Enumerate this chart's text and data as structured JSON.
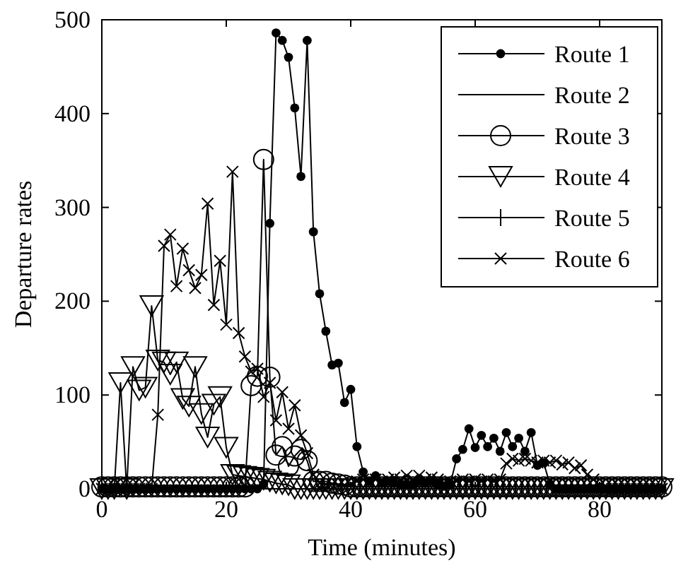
{
  "chart_data": {
    "type": "line",
    "xlabel": "Time (minutes)",
    "ylabel": "Departure rates",
    "xlim": [
      0,
      90
    ],
    "xticks": [
      0,
      20,
      40,
      60,
      80
    ],
    "ylim": [
      0,
      500
    ],
    "yticks": [
      0,
      100,
      200,
      300,
      400,
      500
    ],
    "legend": "top right",
    "grid": false,
    "line_style": "solid",
    "x": [
      0,
      1,
      2,
      3,
      4,
      5,
      6,
      7,
      8,
      9,
      10,
      11,
      12,
      13,
      14,
      15,
      16,
      17,
      18,
      19,
      20,
      21,
      22,
      23,
      24,
      25,
      26,
      27,
      28,
      29,
      30,
      31,
      32,
      33,
      34,
      35,
      36,
      37,
      38,
      39,
      40,
      41,
      42,
      43,
      44,
      45,
      46,
      47,
      48,
      49,
      50,
      51,
      52,
      53,
      54,
      55,
      56,
      57,
      58,
      59,
      60,
      61,
      62,
      63,
      64,
      65,
      66,
      67,
      68,
      69,
      70,
      71,
      72,
      73,
      74,
      75,
      76,
      77,
      78,
      79,
      80,
      81,
      82,
      83,
      84,
      85,
      86,
      87,
      88,
      89,
      90
    ],
    "series": [
      {
        "name": "Route 1",
        "color": "#000000",
        "marker": "circle",
        "values": [
          0,
          0,
          0,
          0,
          0,
          0,
          0,
          0,
          0,
          0,
          0,
          0,
          0,
          0,
          0,
          0,
          0,
          0,
          0,
          0,
          0,
          0,
          0,
          0,
          0,
          0,
          5,
          283,
          486,
          478,
          460,
          406,
          333,
          478,
          274,
          208,
          168,
          132,
          134,
          92,
          106,
          45,
          18,
          8,
          14,
          6,
          8,
          6,
          5,
          5,
          5,
          8,
          6,
          8,
          5,
          3,
          5,
          32,
          42,
          64,
          44,
          57,
          45,
          54,
          40,
          60,
          45,
          54,
          40,
          60,
          25,
          28,
          5,
          0,
          0,
          0,
          0,
          0,
          0,
          0,
          0,
          0,
          0,
          0,
          0,
          0,
          0,
          0,
          0,
          0,
          0
        ]
      },
      {
        "name": "Route 2",
        "color": "#000000",
        "marker": "none",
        "values": [
          null,
          null,
          null,
          null,
          null,
          null,
          null,
          null,
          null,
          null,
          null,
          null,
          null,
          null,
          null,
          null,
          null,
          null,
          null,
          null,
          null,
          null,
          null,
          null,
          null,
          null,
          null,
          null,
          null,
          null,
          null,
          null,
          null,
          null,
          null,
          null,
          null,
          null,
          null,
          null,
          null,
          null,
          null,
          null,
          null,
          null,
          null,
          null,
          null,
          null,
          null,
          null,
          null,
          null,
          null,
          null,
          null,
          null,
          null,
          null,
          null,
          null,
          null,
          null,
          null,
          null,
          null,
          null,
          null,
          null,
          null,
          null,
          null,
          null,
          null,
          null,
          null,
          null,
          null,
          null,
          null,
          null,
          null,
          null,
          null,
          null,
          null,
          null,
          null,
          null,
          null
        ]
      },
      {
        "name": "Route 3",
        "color": "#000000",
        "marker": "circle-open",
        "values": [
          2,
          2,
          2,
          2,
          2,
          2,
          2,
          2,
          2,
          2,
          2,
          2,
          2,
          2,
          2,
          2,
          2,
          2,
          2,
          2,
          2,
          2,
          2,
          2,
          110,
          120,
          351,
          119,
          36,
          45,
          24,
          35,
          42,
          30,
          8,
          8,
          8,
          6,
          5,
          4,
          2,
          2,
          2,
          2,
          2,
          2,
          2,
          2,
          2,
          2,
          2,
          2,
          2,
          2,
          2,
          2,
          2,
          2,
          2,
          2,
          2,
          2,
          2,
          2,
          2,
          2,
          2,
          2,
          2,
          2,
          2,
          2,
          2,
          2,
          2,
          2,
          2,
          2,
          2,
          2,
          2,
          2,
          2,
          2,
          2,
          2,
          2,
          2,
          2,
          2,
          2
        ]
      },
      {
        "name": "Route 4",
        "color": "#000000",
        "marker": "triangle",
        "values": [
          0,
          0,
          0,
          113,
          0,
          130,
          105,
          108,
          195,
          137,
          135,
          122,
          135,
          96,
          88,
          130,
          80,
          55,
          90,
          98,
          44,
          15,
          14,
          13,
          12,
          11,
          10,
          8,
          6,
          5,
          4,
          0,
          0,
          0,
          0,
          0,
          0,
          0,
          0,
          0,
          0,
          0,
          0,
          0,
          0,
          0,
          0,
          0,
          0,
          0,
          0,
          0,
          0,
          0,
          0,
          0,
          0,
          0,
          0,
          0,
          0,
          0,
          0,
          0,
          0,
          0,
          0,
          0,
          0,
          0,
          0,
          0,
          0,
          0,
          0,
          0,
          0,
          0,
          0,
          0,
          0,
          0,
          0,
          0,
          0,
          0,
          0,
          0,
          0,
          0,
          0
        ]
      },
      {
        "name": "Route 5",
        "color": "#000000",
        "marker": "cross",
        "values": [
          null,
          null,
          null,
          null,
          null,
          null,
          null,
          null,
          null,
          null,
          null,
          null,
          null,
          null,
          null,
          null,
          null,
          null,
          null,
          null,
          null,
          null,
          null,
          null,
          null,
          null,
          null,
          null,
          null,
          null,
          null,
          null,
          null,
          null,
          null,
          null,
          null,
          null,
          null,
          null,
          null,
          null,
          null,
          null,
          null,
          null,
          null,
          null,
          null,
          null,
          null,
          null,
          null,
          null,
          null,
          null,
          null,
          null,
          null,
          null,
          null,
          null,
          null,
          null,
          null,
          null,
          null,
          null,
          null,
          null,
          null,
          null,
          null,
          null,
          null,
          null,
          null,
          null,
          null,
          null,
          null,
          null,
          null,
          null,
          null,
          null,
          null,
          null,
          null,
          null,
          null
        ]
      },
      {
        "name": "Route 6",
        "color": "#000000",
        "marker": "x",
        "values": [
          0,
          0,
          0,
          0,
          0,
          0,
          0,
          0,
          0,
          79,
          259,
          271,
          216,
          256,
          233,
          214,
          228,
          304,
          196,
          243,
          175,
          338,
          166,
          141,
          125,
          128,
          98,
          113,
          73,
          103,
          64,
          89,
          57,
          38,
          15,
          6,
          5,
          5,
          4,
          4,
          5,
          8,
          10,
          8,
          10,
          8,
          10,
          12,
          10,
          14,
          10,
          14,
          10,
          12,
          10,
          6,
          8,
          8,
          10,
          8,
          10,
          8,
          10,
          8,
          10,
          27,
          32,
          30,
          32,
          30,
          28,
          30,
          28,
          30,
          26,
          28,
          22,
          25,
          15,
          10,
          4,
          0,
          0,
          0,
          0,
          0,
          0,
          0,
          0,
          0,
          0
        ]
      }
    ]
  }
}
